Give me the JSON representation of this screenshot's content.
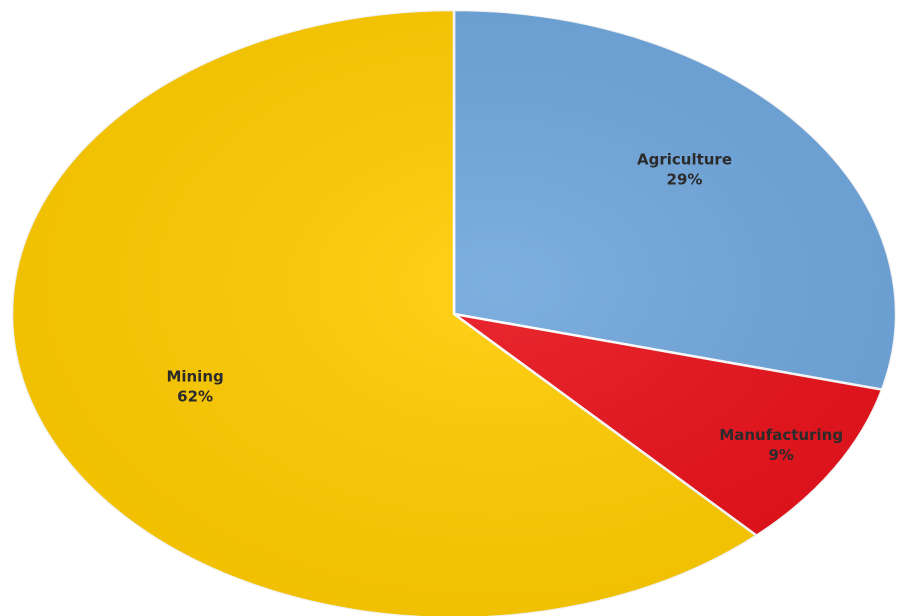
{
  "chart_data": {
    "type": "pie",
    "title": "",
    "categories": [
      "Agriculture",
      "Manufacturing",
      "Mining"
    ],
    "values": [
      29,
      9,
      62
    ],
    "labels": [
      {
        "category": "Agriculture",
        "percent": "29%"
      },
      {
        "category": "Manufacturing",
        "percent": "9%"
      },
      {
        "category": "Mining",
        "percent": "62%"
      }
    ],
    "colors": [
      "#6fa6dc",
      "#e8111a",
      "#ffcc00"
    ],
    "legend": "none",
    "start_angle": "12 o'clock",
    "direction": "clockwise"
  }
}
